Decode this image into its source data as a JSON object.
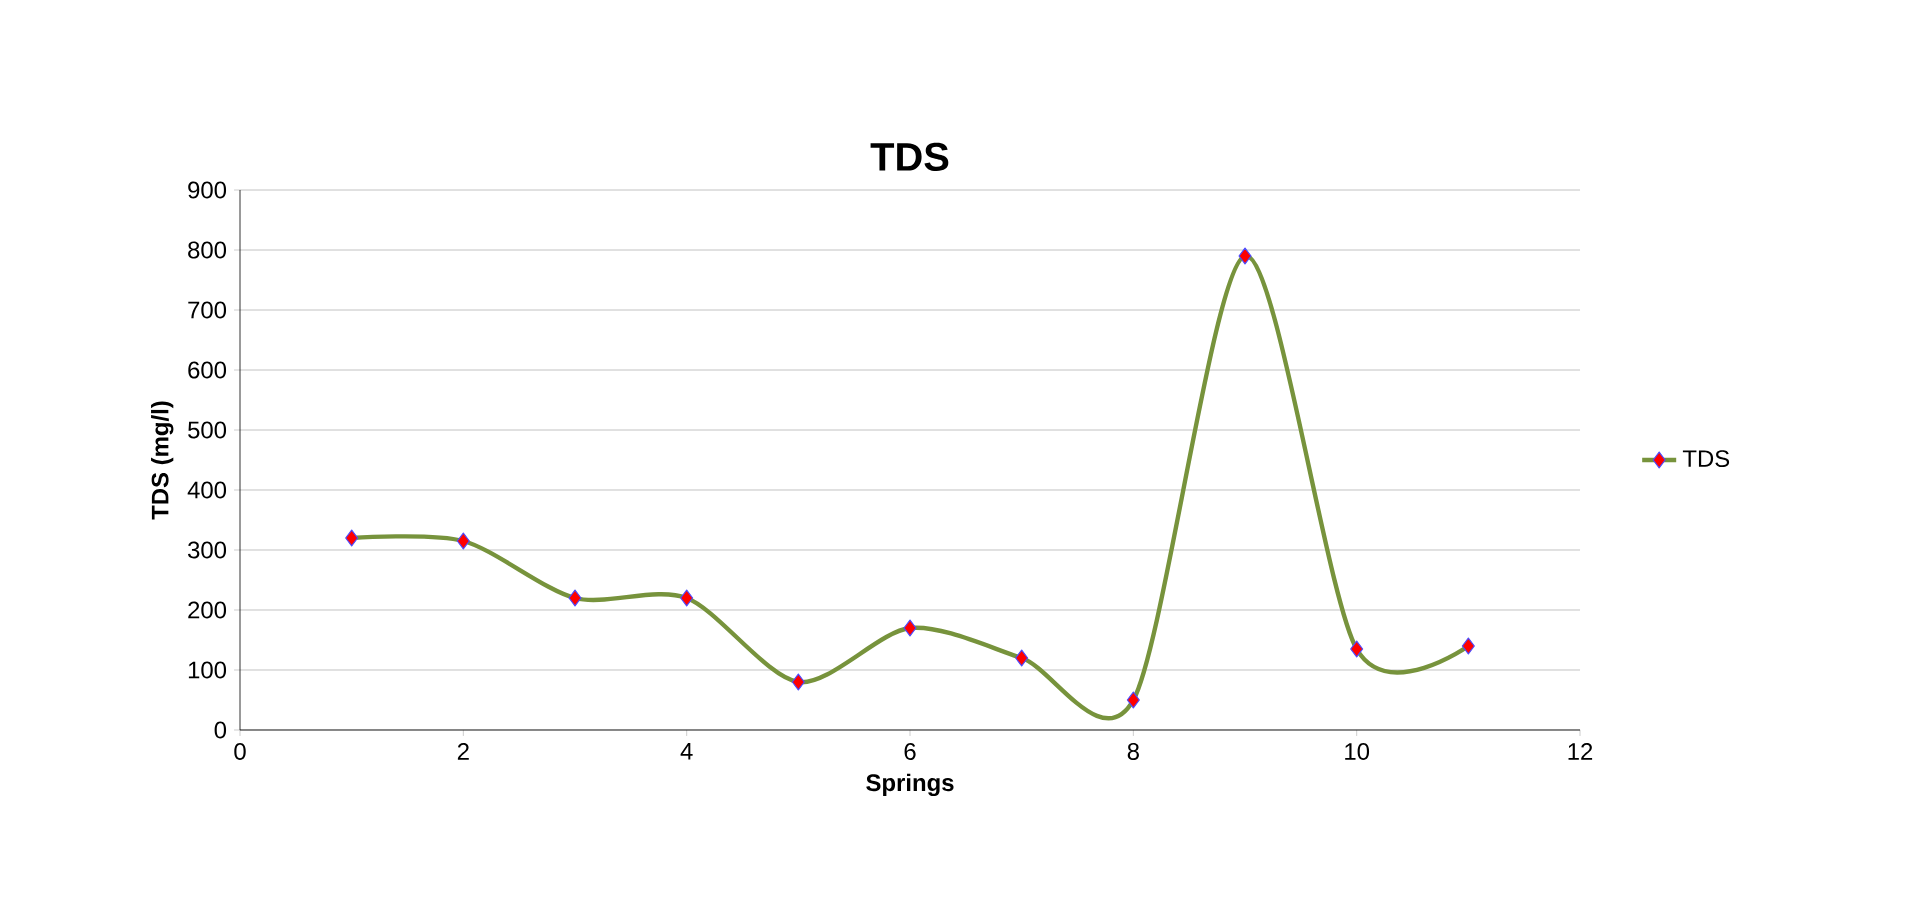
{
  "chart_data": {
    "type": "line",
    "title": "TDS",
    "xlabel": "Springs",
    "ylabel": "TDS (mg/l)",
    "x": [
      1,
      2,
      3,
      4,
      5,
      6,
      7,
      8,
      9,
      10,
      11
    ],
    "series": [
      {
        "name": "TDS",
        "color": "#77933c",
        "values": [
          320,
          315,
          220,
          220,
          80,
          170,
          120,
          50,
          790,
          135,
          140
        ]
      }
    ],
    "xlim": [
      0,
      12
    ],
    "xticks": [
      0,
      2,
      4,
      6,
      8,
      10,
      12
    ],
    "ylim": [
      0,
      900
    ],
    "yticks": [
      0,
      100,
      200,
      300,
      400,
      500,
      600,
      700,
      800,
      900
    ],
    "grid": "y",
    "legend": "right",
    "marker": "diamond",
    "line_style": "solid"
  }
}
